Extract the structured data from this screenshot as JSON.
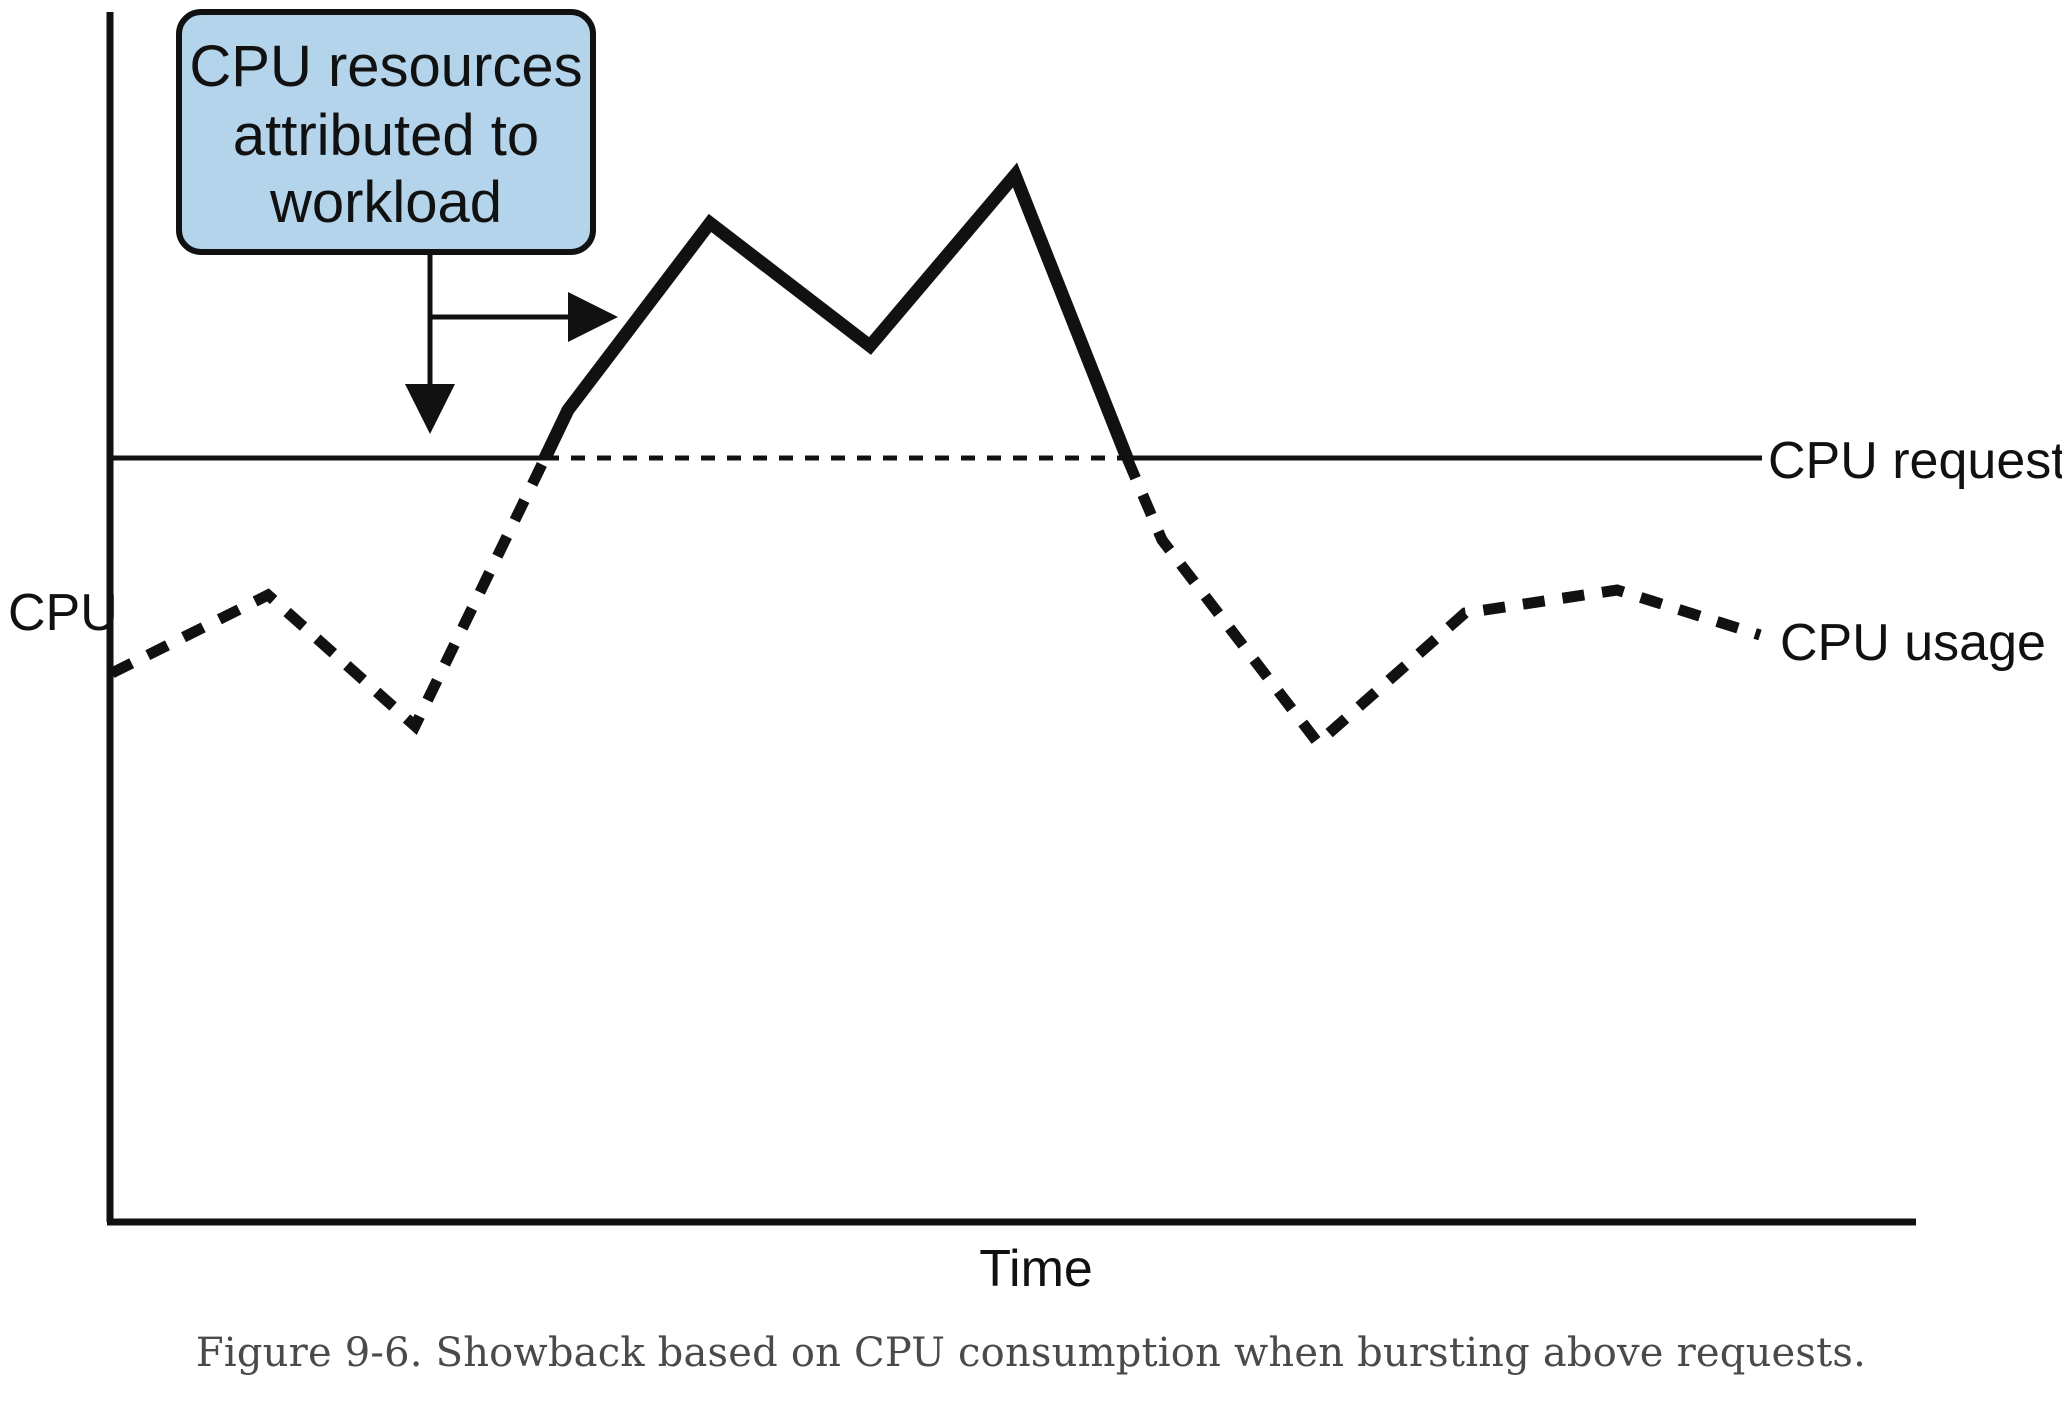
{
  "figure": {
    "callout": {
      "lines": [
        "CPU resources",
        "attributed to",
        "workload"
      ],
      "fill": "#b3d4ea",
      "stroke": "#111111"
    },
    "y_axis_label": "CPU",
    "x_axis_label": "Time",
    "requests_label": "CPU requests",
    "usage_label": "CPU usage",
    "caption": "Figure 9-6. Showback based on CPU consumption when bursting above requests."
  },
  "chart_data": {
    "type": "line",
    "xlabel": "Time",
    "ylabel": "CPU",
    "series": [
      {
        "name": "CPU requests",
        "style": "solid",
        "constant": 5.5
      },
      {
        "name": "CPU usage",
        "style": "dotted-below-requests, solid-above-requests",
        "x": [
          0.0,
          0.9,
          1.7,
          2.45,
          2.55,
          3.35,
          4.25,
          5.05,
          5.65,
          5.95,
          6.8,
          7.5,
          8.1,
          8.9
        ],
        "y": [
          3.6,
          4.25,
          3.2,
          5.5,
          5.9,
          6.85,
          6.2,
          7.1,
          5.5,
          4.7,
          3.1,
          3.9,
          4.1,
          3.8
        ]
      }
    ],
    "annotations": [
      {
        "text": "CPU resources attributed to workload",
        "points_to": [
          "CPU requests line",
          "CPU usage above requests"
        ]
      }
    ]
  }
}
